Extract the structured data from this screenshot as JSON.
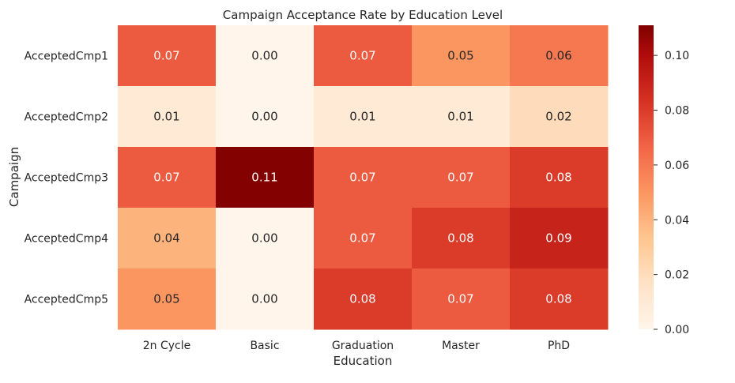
{
  "chart_data": {
    "type": "heatmap",
    "title": "Campaign Acceptance Rate by Education Level",
    "xlabel": "Education",
    "ylabel": "Campaign",
    "x_categories": [
      "2n Cycle",
      "Basic",
      "Graduation",
      "Master",
      "PhD"
    ],
    "y_categories": [
      "AcceptedCmp1",
      "AcceptedCmp2",
      "AcceptedCmp3",
      "AcceptedCmp4",
      "AcceptedCmp5"
    ],
    "values": [
      [
        0.07,
        0.0,
        0.07,
        0.05,
        0.06
      ],
      [
        0.01,
        0.0,
        0.01,
        0.01,
        0.02
      ],
      [
        0.07,
        0.11,
        0.07,
        0.07,
        0.08
      ],
      [
        0.04,
        0.0,
        0.07,
        0.08,
        0.09
      ],
      [
        0.05,
        0.0,
        0.08,
        0.07,
        0.08
      ]
    ],
    "value_format": "0.00",
    "colormap": "Oranges-Reds",
    "vmin": 0.0,
    "vmax": 0.111,
    "colorbar_ticks": [
      "0.00",
      "0.02",
      "0.04",
      "0.06",
      "0.08",
      "0.10"
    ],
    "colorbar_tick_values": [
      0.0,
      0.02,
      0.04,
      0.06,
      0.08,
      0.1
    ],
    "colors": {
      "low": "#fff5eb",
      "high": "#7f0000",
      "text_dark": "#262626",
      "text_light": "#ffffff"
    }
  }
}
